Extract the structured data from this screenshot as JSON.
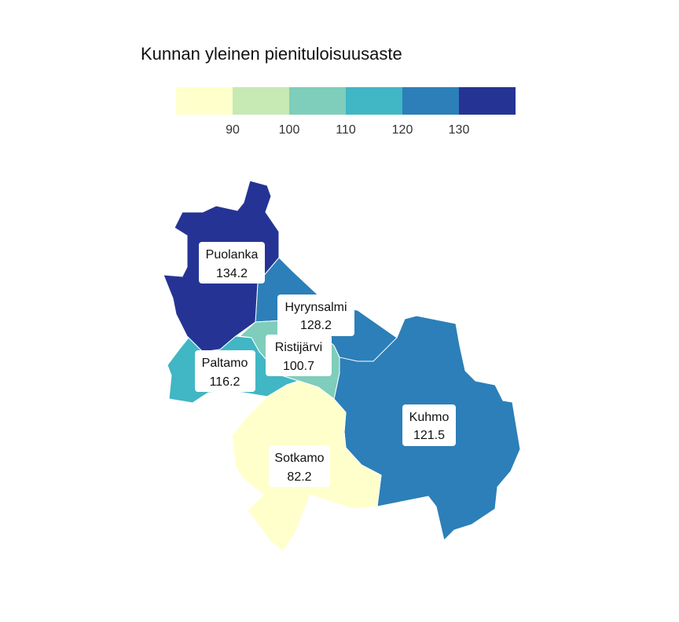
{
  "title": "Kunnan yleinen pienituloisuusaste",
  "legend": {
    "colors": [
      "#ffffcc",
      "#c7e9b4",
      "#7fcdbb",
      "#41b6c4",
      "#2c7fb8",
      "#253494"
    ],
    "ticks": [
      "90",
      "100",
      "110",
      "120",
      "130"
    ]
  },
  "regions": [
    {
      "id": "puolanka",
      "name": "Puolanka",
      "value": "134.2",
      "color": "#253494"
    },
    {
      "id": "hyrynsalmi",
      "name": "Hyrynsalmi",
      "value": "128.2",
      "color": "#2c7fb8"
    },
    {
      "id": "kuhmo",
      "name": "Kuhmo",
      "value": "121.5",
      "color": "#2c7fb8"
    },
    {
      "id": "paltamo",
      "name": "Paltamo",
      "value": "116.2",
      "color": "#41b6c4"
    },
    {
      "id": "ristijarvi",
      "name": "Ristijärvi",
      "value": "100.7",
      "color": "#7fcdbb"
    },
    {
      "id": "sotkamo",
      "name": "Sotkamo",
      "value": "82.2",
      "color": "#ffffcc"
    }
  ]
}
